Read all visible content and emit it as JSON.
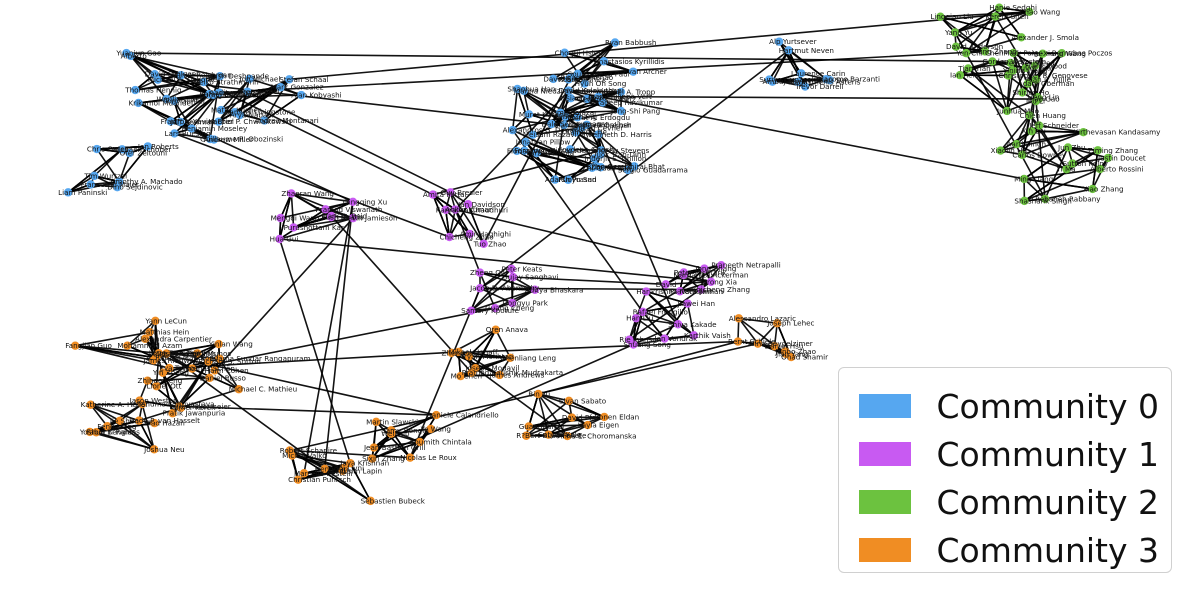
{
  "legend": {
    "items": [
      {
        "label": "Community 0",
        "color": "#56a7f0"
      },
      {
        "label": "Community 1",
        "color": "#c85af2"
      },
      {
        "label": "Community 2",
        "color": "#6cc23f"
      },
      {
        "label": "Community 3",
        "color": "#f08d23"
      }
    ]
  },
  "communities": [
    {
      "id": 0,
      "color": "#56a7f0",
      "members": [
        "Oren Rippel",
        "David Schlegel",
        "Rafael Bombarell",
        "Tim Wurtzel",
        "Jon Michael",
        "Alberto",
        "Jeff Bewman",
        "Michael Schober",
        "Alan Kobyashi",
        "Dougal Maclaurin",
        "Andrew Miller",
        "Francesco Maier",
        "Stefan Schaal",
        "Thomas Hennig",
        "Tom Gunter",
        "Jan Roberts",
        "Mark Gonzalez",
        "Michael A. Osborne",
        "Fran?ois-Xavier Briol",
        "Chris Oates",
        "Matt J. Kusner",
        "Wenlin Chen",
        "Benjamin Moseley",
        "Timothy A. Machado",
        "Arya Nabavi",
        "Yuanjun Gao",
        "Lars Buesing",
        "Liam Paninski",
        "Samuel Livingstone",
        "Heiko Strathmann",
        "Aaditya Ramdas",
        "Dino Sejdinovic",
        "Kacper P. Chwialkowski",
        "Daniel Reichman",
        "Krikamol Muandet",
        "Ofer Zeitouni",
        "Andrea Montanari",
        "Yash Deshpande",
        "Guillaume R. Obozinski",
        "Murat A. Erdogdu",
        "Jean-Philippe Vert",
        "Florian Wenzel",
        "Giacomo Barzanti",
        "Evan Archer",
        "Kenneth D. Harris",
        "Joanna Niedzielska-Barwinska",
        "George C. Goetz",
        "Jonathan Pillow",
        "Jian Sun",
        "Ross Girshick",
        "Sergio Guadarrama",
        "Ning Zhang",
        "David Kalakuthani",
        "Farzan Farnia",
        "Trevor Darrell",
        "Hyun Oh Song",
        "Kaiming He",
        "Meisam Razaviyayn",
        "Jong-Shi Pang",
        "Zhi-Quan Luo",
        "Suriya Gunasekar",
        "Sounyadeep Paul",
        "Joydeep Ghosh",
        "Alexandros G. Dimakis",
        "Hsiang-Fu Yu",
        "Adarsh Prasad",
        "Megasthenis Asteris",
        "Anastasios Kyrillidis",
        "Dhiraj Bhat",
        "Murat Kocaoglu",
        "Pradeep Ravikumar",
        "Inderjit S. Dhillon",
        "Ambuj Tewari",
        "Cho-Jui Hsieh",
        "Quoc Tran-Dinh",
        "Volkan Cevher",
        "Joel A. Tropp",
        "Ruoyu Sun",
        "Alp Yurtsever",
        "David Braun",
        "Brian Gerard",
        "Shaohua Han",
        "Jame Salazar",
        "Zhe Gan",
        "Laurence Carin",
        "Ricardo Henao",
        "Andrew Stevens",
        "Siamak Ravanbakhsh",
        "Dale Schuurmans",
        "Farzaneh Mirzazadeh",
        "Hartmut Neven",
        "Ryan Babbush",
        "Russell Greiner"
      ]
    },
    {
      "id": 1,
      "color": "#c85af2",
      "members": [
        "Purushottam Kar",
        "Harikrishna Narasimhan",
        "Prateek Jain",
        "Jacob D. Abernethy",
        "Ian Davidson",
        "Mark D. Reid",
        "Rafael Frongillo",
        "David",
        "Peter Keats",
        "Guy Bresler",
        "Pramod Viswanath",
        "Jan Vondrak",
        "Lirong Xia",
        "Aditya Bhaskara",
        "Amita Mittal",
        "Kush Bhatia",
        "Karthik Vaish",
        "Praneeth Netrapalli",
        "Sujay Sanghavi",
        "Ankur Kumar",
        "Qingqing Xu",
        "Shiva Kakade",
        "Margareta Ackerman",
        "Samory Kpotufe",
        "Kamalika Chaudhuri",
        "Kevin Jamieson",
        "Shuang Song",
        "Chicheng Zhang",
        "Dongyu Park",
        "Chicheng Zhao",
        "Zhaoran Wang",
        "Han Liu",
        "Tong Zhang",
        "Guang Cheng",
        "Tuo Zhao",
        "Mengdi Wang",
        "Rie Johnson",
        "Peter Richtarik",
        "Zheng Qiu",
        "Amir Haghighi",
        "Hua Gui",
        "Jiawei Han"
      ]
    },
    {
      "id": 2,
      "color": "#6cc23f",
      "members": [
        "Adam Oberman",
        "Yang Yu",
        "Gordon Wetzstein",
        "Alberto Rossini",
        "Carlos Downey",
        "Mu Li",
        "David Anderson",
        "Suvrit Sra",
        "Sutton Keiny",
        "Aarti Singh",
        "Yu-Xiang Wang",
        "Alexander J. Smola",
        "Yining Wang",
        "Xiao Zhang",
        "Kirthevasan Kandasamy",
        "Shirley Ho",
        "Yen-Chi Chen",
        "Christopher R. Genovese",
        "Shashank Singh",
        "Jeff Schneider",
        "Barnabas Poczos",
        "Hanie Sedghi",
        "Tian Tian",
        "Jun Zhu",
        "Xin Liu",
        "Alan L. Yuille",
        "Tong Zhang",
        "Junhua Mao",
        "Ming Liang",
        "Xiaolin Hu",
        "Frank Wood",
        "Kerem Shen",
        "Greg Ver Steeg",
        "Justin Doucet",
        "Chien Huang",
        "Mark Paige",
        "Lingqiao Liu",
        "Hao Gao",
        "Ziming Zhang",
        "Yi Ma",
        "Heng Lin",
        "Chao Wang",
        "Ian Reid",
        "Rebaneh Rabbany"
      ]
    },
    {
      "id": 3,
      "color": "#f08d23",
      "members": [
        "Michal Valko",
        "Sivan Sabato",
        "Jean-Bastien Grill",
        "Alexandra Carpentier",
        "Rémi Munos",
        "Joshua Neu",
        "Aryan Mokhtari",
        "Eyke Hüllermeier",
        "Alessandro Lazaric",
        "Marcello Restelli",
        "R?Bert Busa-Fekete",
        "Daniele Calandriello",
        "A. Rupam Mahmood",
        "Haim Cohen",
        "Hado P. van Hasselt",
        "Joseph Modayil",
        "Richard S. Sutton",
        "Daniel Hsu",
        "Jaya Krishnan",
        "Bin Yu",
        "Samy Bengio",
        "Long Tran-Thanh",
        "Lionel Ott",
        "Fabio T. Ramos",
        "Zheng Wen",
        "Daniel Russo",
        "Alina Beygelzimer",
        "Robert Schapire",
        "Satyen Kale",
        "Wei Luo",
        "Eva Tardos",
        "Vasilis Syrgkanis",
        "Elad Hazan",
        "Oren Anava",
        "Tomer Koren",
        "Ohad Shamir",
        "Roi Livni",
        "Anna E. Choromanska",
        "Sixin Zhang",
        "Yann LeCun",
        "Michael C. Mathieu",
        "Yoshua Bengio",
        "Mikael Henaff",
        "Jason Weston",
        "Junbo Zhao",
        "Christian Puhrsch",
        "Layla Eigen",
        "Soumith Chintala",
        "Mohammed Azam",
        "Yinlan Wang",
        "Jie Shen",
        "Mo Chen",
        "Yin Zheng",
        "Jian Yang",
        "Heng Yan",
        "Guanguan Li",
        "Martin Slawski",
        "Matthias Hein",
        "Syama Sundar Rangapuram",
        "Anshumali Shrivastava",
        "Pramod Kaushik Mudrakarta",
        "Pratik Jawanpuria",
        "Bernt Schiele",
        "Maksim Lapin",
        "David Pfau",
        "Ye Wang",
        "Fangjian Guo",
        "Peichao Peng",
        "Katherine A. Heller",
        "James Andrews",
        "Zhihao Peng",
        "Joseph Lehec",
        "Sebastien Bubeck",
        "Ronen Eldan",
        "Nicolas Le Roux",
        "James Ridgway",
        "Thomas Schön",
        "Feng Liang",
        "Chenliang Leng"
      ]
    }
  ]
}
